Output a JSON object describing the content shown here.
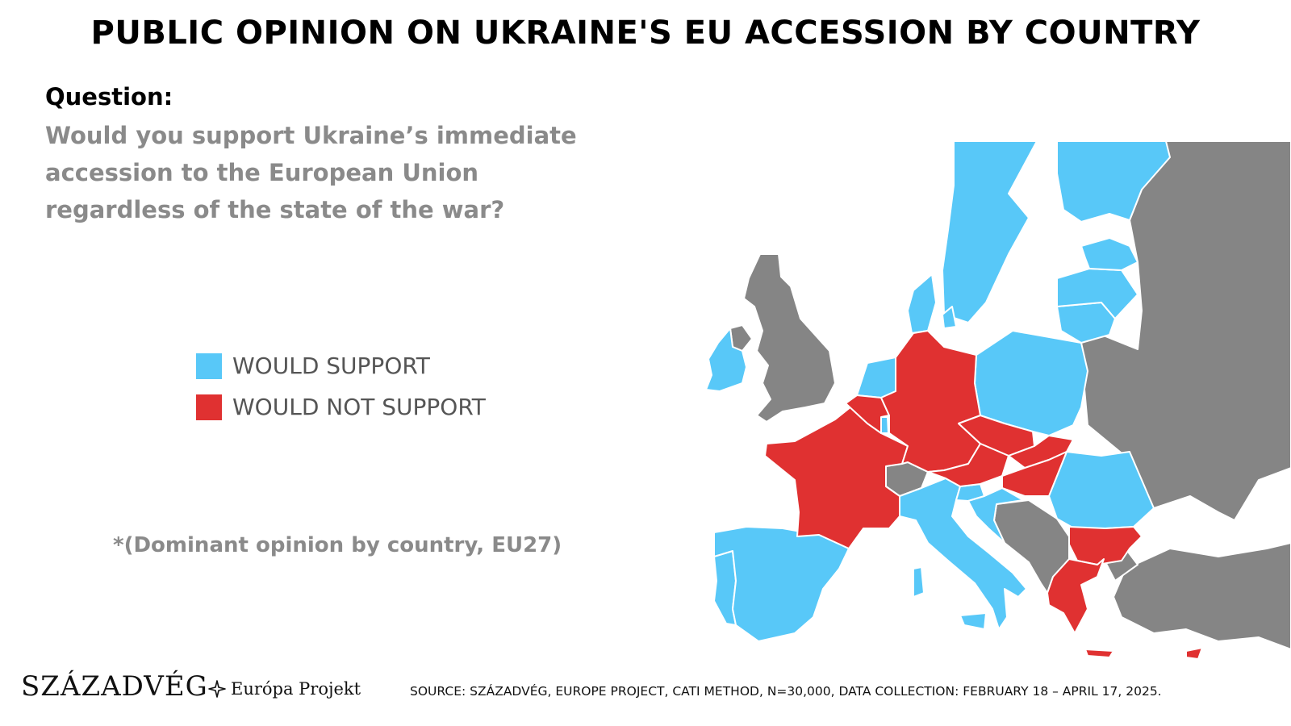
{
  "title": "PUBLIC OPINION ON UKRAINE'S EU ACCESSION BY COUNTRY",
  "question_label": "Question:",
  "question_text": "Would you support Ukraine’s immediate accession to the European Union regardless of the state of the war?",
  "legend": {
    "support": {
      "label": "WOULD SUPPORT",
      "color": "#58c8f8"
    },
    "not_support": {
      "label": "WOULD NOT SUPPORT",
      "color": "#e03131"
    }
  },
  "non_eu_color": "#858585",
  "note": "*(Dominant opinion by country, EU27)",
  "logos": {
    "main": "SZÁZADVÉG",
    "sub": "Európa Projekt"
  },
  "source": "SOURCE:  SZÁZADVÉG, EUROPE PROJECT, CATI METHOD, N=30,000, DATA COLLECTION: FEBRUARY 18 – APRIL 17, 2025.",
  "countries": {
    "would_support": [
      "Ireland",
      "Spain",
      "Portugal",
      "Italy",
      "Malta",
      "Slovenia",
      "Croatia",
      "Romania",
      "Poland",
      "Lithuania",
      "Latvia",
      "Estonia",
      "Finland",
      "Sweden",
      "Denmark",
      "Netherlands",
      "Luxembourg"
    ],
    "would_not_support": [
      "France",
      "Belgium",
      "Germany",
      "Austria",
      "Czechia",
      "Slovakia",
      "Hungary",
      "Bulgaria",
      "Greece",
      "Cyprus"
    ]
  }
}
